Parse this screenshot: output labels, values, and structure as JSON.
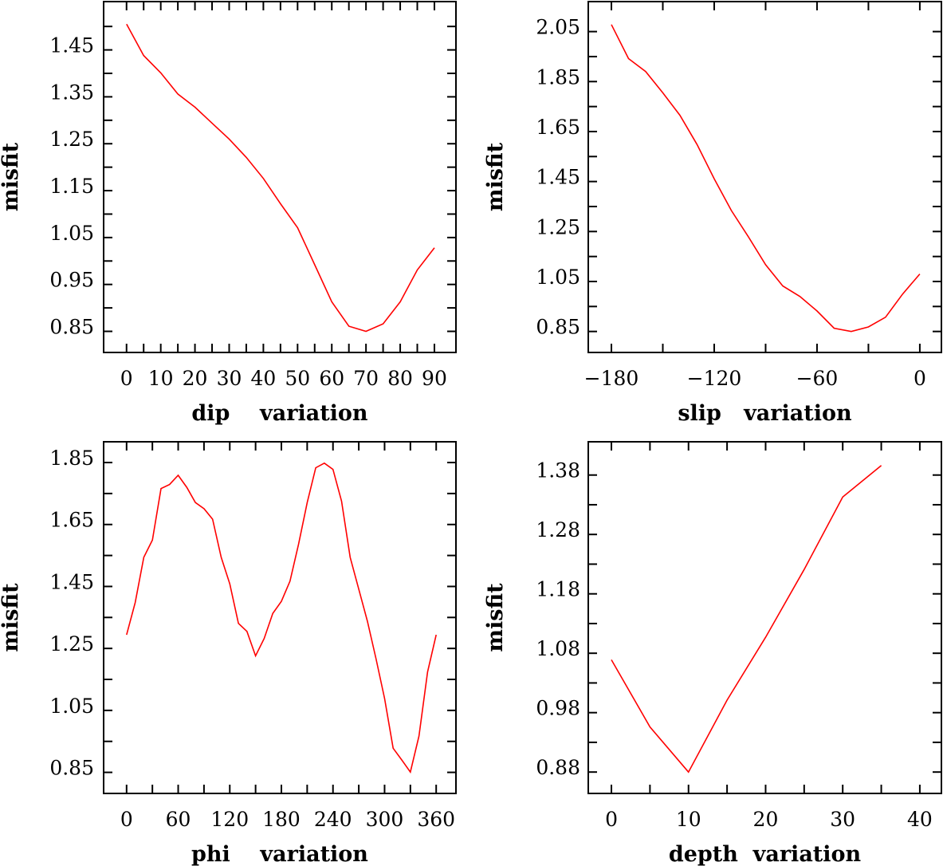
{
  "chart_data": [
    {
      "type": "line",
      "title": "",
      "xlabel": "dip    variation",
      "ylabel": "misfit",
      "xlim": [
        -6.7,
        96.3
      ],
      "ylim": [
        0.805,
        1.553
      ],
      "xticks": [
        0,
        5,
        10,
        15,
        20,
        25,
        30,
        35,
        40,
        45,
        50,
        55,
        60,
        65,
        70,
        75,
        80,
        85,
        90
      ],
      "xtick_labels": [
        {
          "v": 0,
          "t": "0"
        },
        {
          "v": 10,
          "t": "10"
        },
        {
          "v": 20,
          "t": "20"
        },
        {
          "v": 30,
          "t": "30"
        },
        {
          "v": 40,
          "t": "40"
        },
        {
          "v": 50,
          "t": "50"
        },
        {
          "v": 60,
          "t": "60"
        },
        {
          "v": 70,
          "t": "70"
        },
        {
          "v": 80,
          "t": "80"
        },
        {
          "v": 90,
          "t": "90"
        }
      ],
      "yticks": [
        0.85,
        0.9,
        0.95,
        1.0,
        1.05,
        1.1,
        1.15,
        1.2,
        1.25,
        1.3,
        1.35,
        1.4,
        1.45,
        1.5
      ],
      "ytick_labels": [
        {
          "v": 1.45,
          "t": "1.45"
        },
        {
          "v": 1.35,
          "t": "1.35"
        },
        {
          "v": 1.25,
          "t": "1.25"
        },
        {
          "v": 1.15,
          "t": "1.15"
        },
        {
          "v": 1.05,
          "t": "1.05"
        },
        {
          "v": 0.95,
          "t": "0.95"
        },
        {
          "v": 0.85,
          "t": "0.85"
        }
      ],
      "grid": false,
      "series": [
        {
          "name": "misfit",
          "color": "#ff0000",
          "x": [
            0,
            5,
            10,
            15,
            20,
            25,
            30,
            35,
            40,
            45,
            50,
            55,
            60,
            65,
            70,
            75,
            80,
            85,
            90
          ],
          "y": [
            1.505,
            1.438,
            1.401,
            1.356,
            1.328,
            1.294,
            1.26,
            1.221,
            1.176,
            1.122,
            1.071,
            0.992,
            0.913,
            0.861,
            0.85,
            0.866,
            0.913,
            0.981,
            1.028
          ]
        }
      ]
    },
    {
      "type": "line",
      "title": "",
      "xlabel": "slip   variation",
      "ylabel": "misfit",
      "xlim": [
        -193.5,
        12.6
      ],
      "ylim": [
        0.766,
        2.17
      ],
      "xticks": [
        -180,
        -150,
        -120,
        -90,
        -60,
        -30,
        0
      ],
      "xtick_labels": [
        {
          "v": -180,
          "t": "−180"
        },
        {
          "v": -120,
          "t": "−120"
        },
        {
          "v": -60,
          "t": "−60"
        },
        {
          "v": 0,
          "t": "0"
        }
      ],
      "yticks": [
        0.85,
        0.95,
        1.05,
        1.15,
        1.25,
        1.35,
        1.45,
        1.55,
        1.65,
        1.75,
        1.85,
        1.95,
        2.05
      ],
      "ytick_labels": [
        {
          "v": 2.05,
          "t": "2.05"
        },
        {
          "v": 1.85,
          "t": "1.85"
        },
        {
          "v": 1.65,
          "t": "1.65"
        },
        {
          "v": 1.45,
          "t": "1.45"
        },
        {
          "v": 1.25,
          "t": "1.25"
        },
        {
          "v": 1.05,
          "t": "1.05"
        },
        {
          "v": 0.85,
          "t": "0.85"
        }
      ],
      "grid": false,
      "series": [
        {
          "name": "misfit",
          "color": "#ff0000",
          "x": [
            -180,
            -170,
            -160,
            -150,
            -140,
            -130,
            -120,
            -110,
            -100,
            -90,
            -80,
            -70,
            -60,
            -50,
            -40,
            -30,
            -20,
            -10,
            0
          ],
          "y": [
            2.078,
            1.942,
            1.89,
            1.805,
            1.715,
            1.598,
            1.461,
            1.334,
            1.228,
            1.117,
            1.032,
            0.99,
            0.932,
            0.863,
            0.85,
            0.868,
            0.907,
            1.0,
            1.08
          ]
        }
      ]
    },
    {
      "type": "line",
      "title": "",
      "xlabel": "phi    variation",
      "ylabel": "misfit",
      "xlim": [
        -26.7,
        383
      ],
      "ylim": [
        0.782,
        1.917
      ],
      "xticks": [
        0,
        30,
        60,
        90,
        120,
        150,
        180,
        210,
        240,
        270,
        300,
        330,
        360
      ],
      "xtick_labels": [
        {
          "v": 0,
          "t": "0"
        },
        {
          "v": 60,
          "t": "60"
        },
        {
          "v": 120,
          "t": "120"
        },
        {
          "v": 180,
          "t": "180"
        },
        {
          "v": 240,
          "t": "240"
        },
        {
          "v": 300,
          "t": "300"
        },
        {
          "v": 360,
          "t": "360"
        }
      ],
      "yticks": [
        0.85,
        0.95,
        1.05,
        1.15,
        1.25,
        1.35,
        1.45,
        1.55,
        1.65,
        1.75,
        1.85
      ],
      "ytick_labels": [
        {
          "v": 1.85,
          "t": "1.85"
        },
        {
          "v": 1.65,
          "t": "1.65"
        },
        {
          "v": 1.45,
          "t": "1.45"
        },
        {
          "v": 1.25,
          "t": "1.25"
        },
        {
          "v": 1.05,
          "t": "1.05"
        },
        {
          "v": 0.85,
          "t": "0.85"
        }
      ],
      "grid": false,
      "series": [
        {
          "name": "misfit",
          "color": "#ff0000",
          "x": [
            0,
            10,
            20,
            30,
            40,
            50,
            60,
            70,
            80,
            90,
            100,
            110,
            120,
            130,
            140,
            150,
            160,
            170,
            180,
            190,
            200,
            210,
            220,
            230,
            240,
            250,
            260,
            270,
            280,
            290,
            300,
            310,
            320,
            330,
            340,
            350,
            360
          ],
          "y": [
            1.294,
            1.398,
            1.544,
            1.6,
            1.766,
            1.779,
            1.809,
            1.77,
            1.721,
            1.701,
            1.667,
            1.544,
            1.458,
            1.331,
            1.305,
            1.226,
            1.282,
            1.363,
            1.402,
            1.467,
            1.587,
            1.721,
            1.833,
            1.848,
            1.828,
            1.725,
            1.544,
            1.441,
            1.338,
            1.217,
            1.088,
            0.928,
            0.89,
            0.851,
            0.967,
            1.174,
            1.294
          ]
        }
      ]
    },
    {
      "type": "line",
      "title": "",
      "xlabel": "depth  variation",
      "ylabel": "misfit",
      "xlim": [
        -3.0,
        42.8
      ],
      "ylim": [
        0.844,
        1.436
      ],
      "xticks": [
        0,
        5,
        10,
        15,
        20,
        25,
        30,
        35,
        40
      ],
      "xtick_labels": [
        {
          "v": 0,
          "t": "0"
        },
        {
          "v": 10,
          "t": "10"
        },
        {
          "v": 20,
          "t": "20"
        },
        {
          "v": 30,
          "t": "30"
        },
        {
          "v": 40,
          "t": "40"
        }
      ],
      "yticks": [
        0.88,
        0.93,
        0.98,
        1.03,
        1.08,
        1.13,
        1.18,
        1.23,
        1.28,
        1.33,
        1.38
      ],
      "ytick_labels": [
        {
          "v": 1.38,
          "t": "1.38"
        },
        {
          "v": 1.28,
          "t": "1.28"
        },
        {
          "v": 1.18,
          "t": "1.18"
        },
        {
          "v": 1.08,
          "t": "1.08"
        },
        {
          "v": 0.98,
          "t": "0.98"
        },
        {
          "v": 0.88,
          "t": "0.88"
        }
      ],
      "grid": false,
      "series": [
        {
          "name": "misfit",
          "color": "#ff0000",
          "x": [
            0,
            5,
            10,
            15,
            20,
            25,
            30,
            35
          ],
          "y": [
            1.069,
            0.956,
            0.88,
            1.001,
            1.107,
            1.221,
            1.343,
            1.396
          ]
        }
      ]
    }
  ]
}
